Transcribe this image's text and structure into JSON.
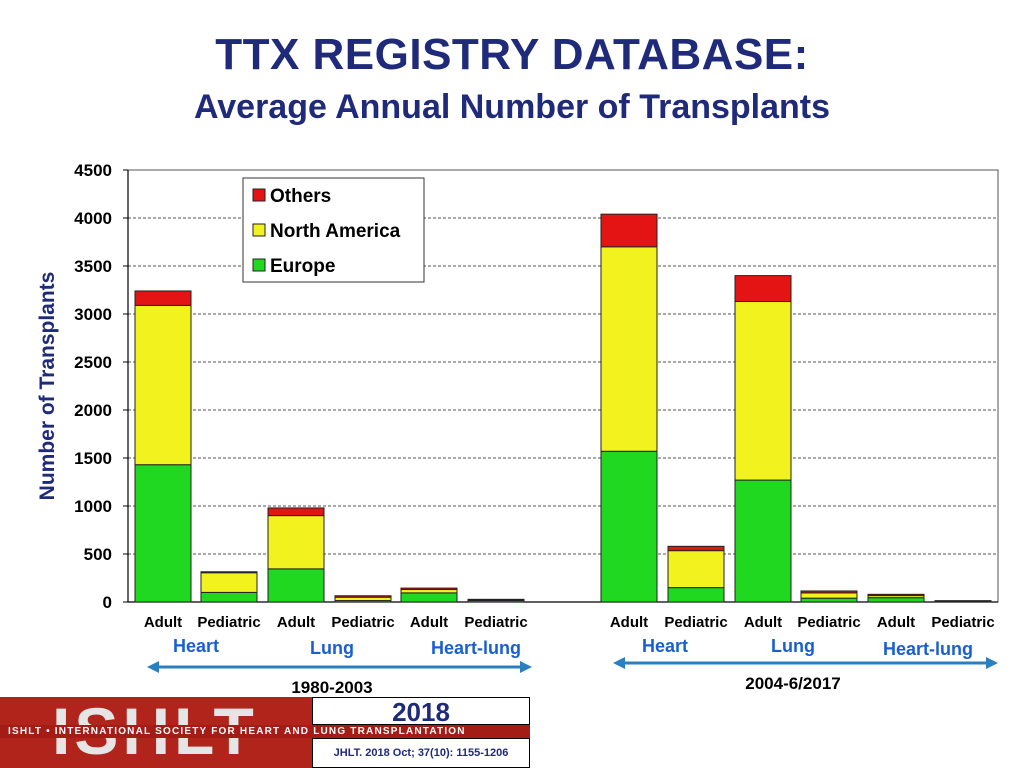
{
  "title": "TTX REGISTRY DATABASE:",
  "subtitle": "Average Annual Number of Transplants",
  "footer": {
    "logo_text": "ISHLT",
    "org_name": "ISHLT • INTERNATIONAL SOCIETY FOR HEART AND LUNG TRANSPLANTATION",
    "year": "2018",
    "citation": "JHLT. 2018 Oct; 37(10): 1155-1206"
  },
  "colors": {
    "europe": "#1fd81f",
    "north_america": "#f2f21f",
    "others": "#e41414",
    "text_blue": "#1f2a7a",
    "group_blue": "#1a5fd0",
    "arrow": "#2a7fbf"
  },
  "chart_data": {
    "type": "bar",
    "stacked": true,
    "title": "TTX REGISTRY DATABASE:",
    "subtitle": "Average Annual Number of Transplants",
    "ylabel": "Number of Transplants",
    "xlabel": "",
    "ylim": [
      0,
      4500
    ],
    "yticks": [
      0,
      500,
      1000,
      1500,
      2000,
      2500,
      3000,
      3500,
      4000,
      4500
    ],
    "grid": true,
    "legend_position": "top-left",
    "categories": [
      "Adult",
      "Pediatric",
      "Adult",
      "Pediatric",
      "Adult",
      "Pediatric",
      "Adult",
      "Pediatric",
      "Adult",
      "Pediatric",
      "Adult",
      "Pediatric"
    ],
    "series": [
      {
        "name": "Europe",
        "values": [
          1430,
          100,
          345,
          15,
          95,
          15,
          1570,
          150,
          1270,
          40,
          45,
          5
        ]
      },
      {
        "name": "North America",
        "values": [
          1660,
          205,
          555,
          35,
          35,
          8,
          2130,
          385,
          1860,
          55,
          22,
          6
        ]
      },
      {
        "name": "Others",
        "values": [
          150,
          10,
          80,
          15,
          15,
          5,
          340,
          45,
          270,
          20,
          13,
          3
        ]
      }
    ],
    "legend": [
      "Others",
      "North America",
      "Europe"
    ],
    "organ_groups": [
      {
        "label": "Heart"
      },
      {
        "label": "Lung"
      },
      {
        "label": "Heart-lung"
      },
      {
        "label": "Heart"
      },
      {
        "label": "Lung"
      },
      {
        "label": "Heart-lung"
      }
    ],
    "periods": [
      {
        "label": "1980-2003"
      },
      {
        "label": "2004-6/2017"
      }
    ]
  }
}
